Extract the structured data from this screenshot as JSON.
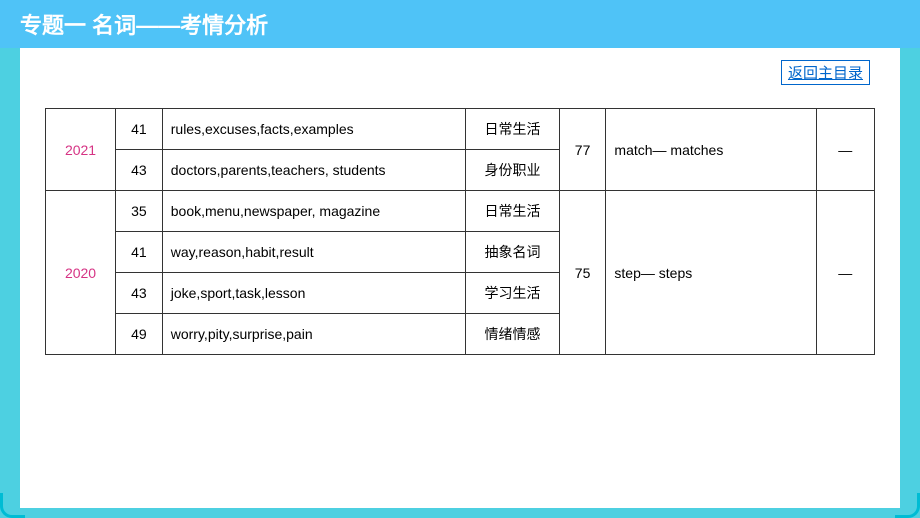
{
  "header": {
    "title": "专题一  名词——考情分析"
  },
  "return_link": "返回主目录",
  "colors": {
    "header_bg": "#4fc3f7",
    "page_bg": "#4dd0e1",
    "content_bg": "#ffffff",
    "year_color": "#d63384",
    "link_color": "#0066cc",
    "border_color": "#333333"
  },
  "table": {
    "rows": [
      {
        "year": "2021",
        "year_rowspan": 2,
        "num": "41",
        "words": "rules,excuses,facts,examples",
        "category": "日常生活",
        "num2": "77",
        "num2_rowspan": 2,
        "transform": "match— matches",
        "transform_rowspan": 2,
        "dash": "—",
        "dash_rowspan": 2
      },
      {
        "num": "43",
        "words": "doctors,parents,teachers, students",
        "category": "身份职业"
      },
      {
        "year": "2020",
        "year_rowspan": 4,
        "num": "35",
        "words": "book,menu,newspaper, magazine",
        "category": "日常生活",
        "num2": "75",
        "num2_rowspan": 4,
        "transform": "step— steps",
        "transform_rowspan": 4,
        "dash": "—",
        "dash_rowspan": 4
      },
      {
        "num": "41",
        "words": "way,reason,habit,result",
        "category": "抽象名词"
      },
      {
        "num": "43",
        "words": "joke,sport,task,lesson",
        "category": "学习生活"
      },
      {
        "num": "49",
        "words": "worry,pity,surprise,pain",
        "category": "情绪情感"
      }
    ]
  }
}
